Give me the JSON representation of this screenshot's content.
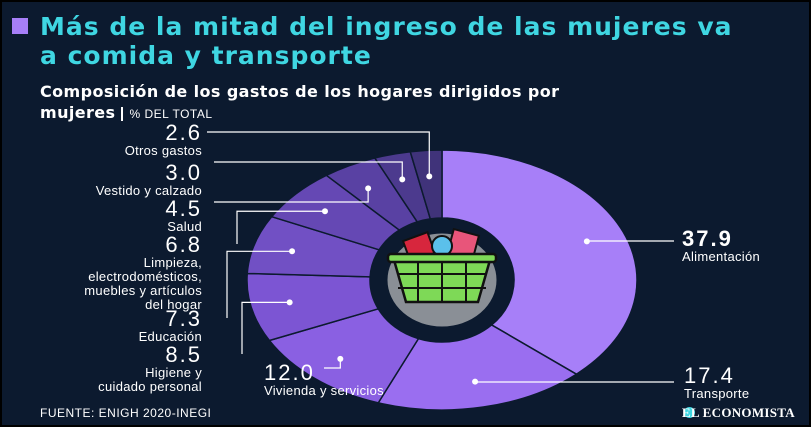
{
  "chart_data": {
    "type": "donut",
    "title": "Más de la mitad del ingreso de las mujeres va a comida y transporte",
    "subtitle": "Composición de los gastos de los hogares dirigidos por mujeres",
    "unit": "% DEL TOTAL",
    "categories": [
      "Alimentación",
      "Transporte",
      "Vivienda y servicios",
      "Higiene y cuidado personal",
      "Educación",
      "Limpieza, electrodomésticos, muebles y artículos del hogar",
      "Salud",
      "Vestido y calzado",
      "Otros gastos"
    ],
    "values": [
      37.9,
      17.4,
      12,
      8.5,
      7.3,
      6.8,
      4.5,
      3,
      2.6
    ],
    "value_labels": [
      "37.9",
      "17.4",
      "12.0",
      "8.5",
      "7.3",
      "6.8",
      "4.5",
      "3.0",
      "2.6"
    ],
    "colors": [
      "#a77ff8",
      "#9a6ef0",
      "#8a60e2",
      "#7c55d3",
      "#7150c4",
      "#6548b4",
      "#5941a3",
      "#4c3a8e",
      "#40337a"
    ],
    "source": "FUENTE: ENIGH 2020-INEGI",
    "brand": "EL ECONOMISTA"
  }
}
